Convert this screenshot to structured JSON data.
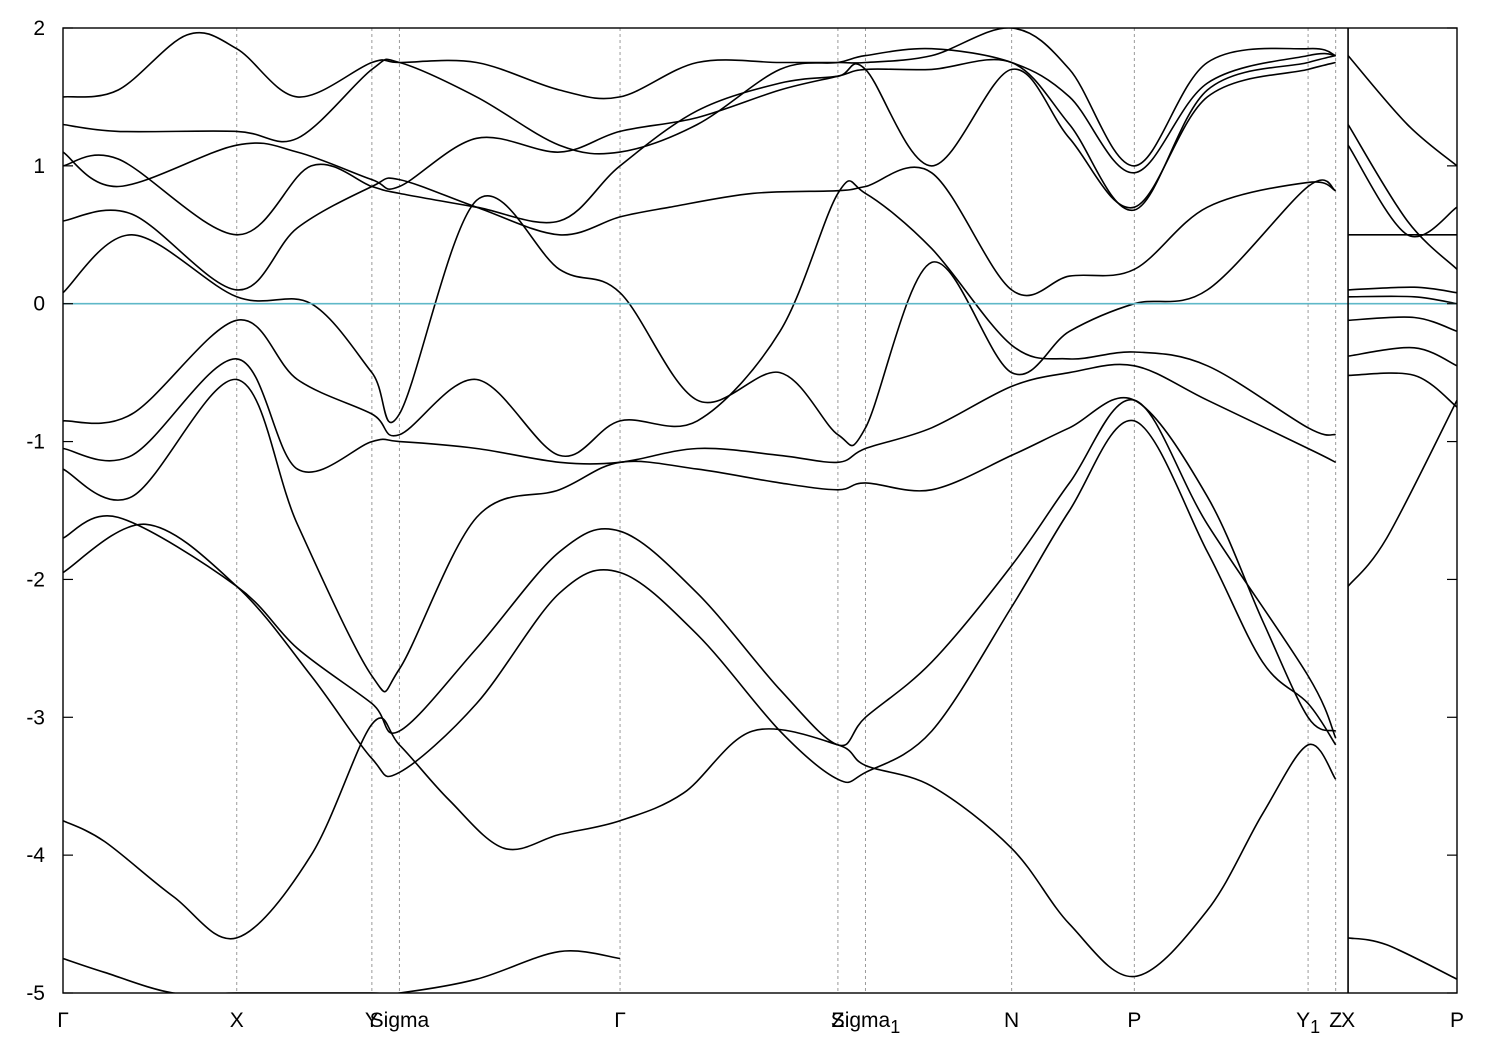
{
  "chart_data": {
    "type": "line",
    "title": "",
    "xlabel": "",
    "ylabel": "",
    "ylim": [
      -5,
      2
    ],
    "y_ticks": [
      -5,
      -4,
      -3,
      -2,
      -1,
      0,
      1,
      2
    ],
    "y_tick_labels": [
      "-5",
      "-4",
      "-3",
      "-2",
      "-1",
      "0",
      "1",
      "2"
    ],
    "x_range": [
      0,
      10.11
    ],
    "k_points": [
      {
        "x": 0.0,
        "label": "Γ"
      },
      {
        "x": 1.26,
        "label": "X"
      },
      {
        "x": 2.24,
        "label": "Y"
      },
      {
        "x": 2.44,
        "label": "Sigma"
      },
      {
        "x": 4.04,
        "label": "Γ"
      },
      {
        "x": 5.62,
        "label": "Z"
      },
      {
        "x": 5.82,
        "label": "Sigma",
        "sub": "1"
      },
      {
        "x": 6.88,
        "label": "N"
      },
      {
        "x": 7.77,
        "label": "P"
      },
      {
        "x": 9.03,
        "label": "Y",
        "sub": "1"
      },
      {
        "x": 9.23,
        "label": "Z"
      },
      {
        "x": 9.32,
        "label": "X"
      },
      {
        "x": 10.11,
        "label": "P"
      }
    ],
    "panel_break_x": 9.32,
    "fermi_level": 0,
    "fermi_color": "#5fb8c8",
    "grid": false,
    "legend": "none",
    "series": [
      {
        "x": [
          0,
          0.3,
          0.8,
          1.26,
          1.7,
          2.24,
          2.44,
          3.0,
          3.6,
          4.04
        ],
        "values": [
          -4.75,
          -4.85,
          -5.0,
          -5.0,
          -5.0,
          -5.0,
          -5.0,
          -4.9,
          -4.7,
          -4.75
        ]
      },
      {
        "x": [
          0,
          0.3,
          0.8,
          1.26,
          1.8,
          2.24,
          2.44,
          2.8,
          3.2,
          3.6,
          4.04,
          4.5,
          5.0,
          5.62,
          5.82,
          6.3,
          6.88,
          7.3,
          7.77,
          8.3,
          8.7,
          9.03,
          9.23
        ],
        "values": [
          -3.75,
          -3.9,
          -4.3,
          -4.6,
          -4.0,
          -3.05,
          -3.2,
          -3.6,
          -3.95,
          -3.85,
          -3.75,
          -3.55,
          -3.1,
          -3.2,
          -3.35,
          -3.5,
          -3.95,
          -4.5,
          -4.88,
          -4.4,
          -3.7,
          -3.2,
          -3.45
        ]
      },
      {
        "x": [
          0,
          0.6,
          1.26,
          1.8,
          2.24,
          2.44,
          3.0,
          3.6,
          4.04,
          4.6,
          5.2,
          5.62,
          5.82,
          6.3,
          6.88,
          7.3,
          7.77,
          8.3,
          8.7,
          9.03,
          9.23
        ],
        "values": [
          -1.95,
          -1.6,
          -2.05,
          -2.7,
          -3.3,
          -3.4,
          -2.9,
          -2.1,
          -1.95,
          -2.4,
          -3.1,
          -3.45,
          -3.4,
          -3.1,
          -2.2,
          -1.5,
          -0.85,
          -1.8,
          -2.6,
          -2.9,
          -3.2
        ]
      },
      {
        "x": [
          0,
          0.4,
          1.26,
          1.7,
          2.24,
          2.44,
          3.0,
          3.6,
          4.04,
          4.6,
          5.2,
          5.62,
          5.82,
          6.3,
          6.88,
          7.3,
          7.77,
          8.3,
          9.03,
          9.23
        ],
        "values": [
          -1.7,
          -1.55,
          -2.05,
          -2.5,
          -2.9,
          -3.1,
          -2.5,
          -1.8,
          -1.65,
          -2.1,
          -2.8,
          -3.2,
          -3.0,
          -2.6,
          -1.9,
          -1.3,
          -0.7,
          -1.6,
          -2.7,
          -3.15
        ]
      },
      {
        "x": [
          0,
          0.5,
          1.26,
          1.7,
          2.24,
          2.44,
          3.0,
          3.6,
          4.04,
          4.6,
          5.2,
          5.62,
          5.82,
          6.3,
          6.88,
          7.3,
          7.77,
          8.3,
          8.7,
          9.03,
          9.23
        ],
        "values": [
          -1.2,
          -1.4,
          -0.55,
          -1.6,
          -2.7,
          -2.65,
          -1.55,
          -1.35,
          -1.15,
          -1.2,
          -1.3,
          -1.35,
          -1.3,
          -1.35,
          -1.1,
          -0.9,
          -0.7,
          -1.4,
          -2.3,
          -3.0,
          -3.1
        ]
      },
      {
        "x": [
          0,
          0.5,
          1.26,
          1.7,
          2.24,
          2.44,
          3.0,
          3.6,
          4.04,
          4.6,
          5.2,
          5.62,
          5.82,
          6.3,
          6.88,
          7.3,
          7.77,
          8.3,
          9.03,
          9.23
        ],
        "values": [
          -1.05,
          -1.1,
          -0.4,
          -1.2,
          -1.0,
          -1.0,
          -1.05,
          -1.15,
          -1.15,
          -1.05,
          -1.1,
          -1.15,
          -1.05,
          -0.9,
          -0.6,
          -0.5,
          -0.45,
          -0.7,
          -1.05,
          -1.15
        ]
      },
      {
        "x": [
          0,
          0.5,
          1.26,
          1.7,
          2.24,
          2.44,
          3.0,
          3.6,
          4.04,
          4.6,
          5.2,
          5.62,
          5.82,
          6.3,
          6.88,
          7.3,
          7.77,
          8.3,
          9.03,
          9.23
        ],
        "values": [
          -0.85,
          -0.8,
          -0.12,
          -0.55,
          -0.8,
          -0.95,
          -0.55,
          -1.1,
          -0.85,
          -0.85,
          -0.2,
          0.8,
          0.8,
          0.4,
          -0.3,
          -0.4,
          -0.35,
          -0.45,
          -0.9,
          -0.95
        ]
      },
      {
        "x": [
          0,
          0.5,
          1.26,
          1.8,
          2.24,
          2.44,
          3.0,
          3.6,
          4.04,
          4.6,
          5.2,
          5.62,
          5.82,
          6.3,
          6.88,
          7.3,
          7.77,
          8.3,
          9.03,
          9.23
        ],
        "values": [
          0.08,
          0.5,
          0.05,
          0.0,
          -0.5,
          -0.8,
          0.75,
          0.25,
          0.08,
          -0.7,
          -0.5,
          -0.95,
          -0.9,
          0.3,
          -0.5,
          -0.2,
          0.0,
          0.1,
          0.85,
          0.82
        ]
      },
      {
        "x": [
          0,
          0.5,
          1.26,
          1.7,
          2.24,
          2.44,
          3.0,
          3.6,
          4.04,
          4.4,
          5.0,
          5.62,
          5.82,
          6.3,
          6.88,
          7.3,
          7.77,
          8.3,
          9.03,
          9.23
        ],
        "values": [
          0.6,
          0.65,
          0.1,
          0.55,
          0.85,
          0.9,
          0.7,
          0.5,
          0.63,
          0.7,
          0.8,
          0.82,
          0.85,
          0.95,
          0.1,
          0.2,
          0.25,
          0.7,
          0.88,
          0.82
        ]
      },
      {
        "x": [
          0,
          0.4,
          1.26,
          1.8,
          2.24,
          2.44,
          3.0,
          3.6,
          4.04,
          4.6,
          5.2,
          5.62,
          5.82,
          6.3,
          6.88,
          7.3,
          7.77,
          8.3,
          9.03,
          9.23
        ],
        "values": [
          1.0,
          1.05,
          0.5,
          1.0,
          0.85,
          0.8,
          0.7,
          0.6,
          1.0,
          1.4,
          1.6,
          1.65,
          1.7,
          1.0,
          1.7,
          1.2,
          0.7,
          1.5,
          1.7,
          1.75
        ]
      },
      {
        "x": [
          0,
          0.4,
          1.26,
          1.7,
          2.24,
          2.44,
          3.0,
          3.6,
          4.04,
          4.6,
          5.2,
          5.62,
          5.82,
          6.3,
          6.88,
          7.3,
          7.77,
          8.3,
          9.03,
          9.23
        ],
        "values": [
          1.1,
          0.85,
          1.15,
          1.1,
          0.9,
          0.85,
          1.2,
          1.1,
          1.25,
          1.35,
          1.55,
          1.65,
          1.7,
          1.7,
          1.75,
          1.3,
          0.68,
          1.55,
          1.75,
          1.8
        ]
      },
      {
        "x": [
          0,
          0.4,
          1.26,
          1.7,
          2.24,
          2.44,
          3.0,
          3.6,
          4.04,
          4.6,
          5.2,
          5.62,
          5.82,
          6.3,
          6.88,
          7.3,
          7.77,
          8.3,
          9.03,
          9.23
        ],
        "values": [
          1.3,
          1.25,
          1.25,
          1.2,
          1.7,
          1.75,
          1.5,
          1.15,
          1.1,
          1.3,
          1.7,
          1.75,
          1.8,
          1.85,
          1.75,
          1.5,
          0.95,
          1.6,
          1.8,
          1.8
        ]
      },
      {
        "x": [
          0,
          0.4,
          0.9,
          1.26,
          1.7,
          2.24,
          2.44,
          3.0,
          3.6,
          4.04,
          4.6,
          5.2,
          5.62,
          5.82,
          6.3,
          6.88,
          7.3,
          7.77,
          8.3,
          9.03,
          9.23
        ],
        "values": [
          1.5,
          1.55,
          1.95,
          1.85,
          1.5,
          1.75,
          1.75,
          1.75,
          1.55,
          1.5,
          1.75,
          1.75,
          1.75,
          1.75,
          1.8,
          2.0,
          1.7,
          1.0,
          1.75,
          1.85,
          1.8
        ]
      },
      {
        "x": [
          9.32,
          9.6,
          10.11
        ],
        "values": [
          -4.6,
          -4.65,
          -4.9
        ]
      },
      {
        "x": [
          9.32,
          9.6,
          10.11
        ],
        "values": [
          -2.05,
          -1.7,
          -0.7
        ]
      },
      {
        "x": [
          9.32,
          9.8,
          10.11
        ],
        "values": [
          -0.52,
          -0.52,
          -0.75
        ]
      },
      {
        "x": [
          9.32,
          9.8,
          10.11
        ],
        "values": [
          -0.38,
          -0.32,
          -0.45
        ]
      },
      {
        "x": [
          9.32,
          9.8,
          10.11
        ],
        "values": [
          -0.12,
          -0.1,
          -0.2
        ]
      },
      {
        "x": [
          9.32,
          9.8,
          10.11
        ],
        "values": [
          0.05,
          0.05,
          0.0
        ]
      },
      {
        "x": [
          9.32,
          9.8,
          10.11
        ],
        "values": [
          0.1,
          0.12,
          0.08
        ]
      },
      {
        "x": [
          9.32,
          9.8,
          10.11
        ],
        "values": [
          0.5,
          0.5,
          0.5
        ]
      },
      {
        "x": [
          9.32,
          9.75,
          10.11
        ],
        "values": [
          1.15,
          0.5,
          0.7
        ]
      },
      {
        "x": [
          9.32,
          9.75,
          10.11
        ],
        "values": [
          1.3,
          0.6,
          0.25
        ]
      },
      {
        "x": [
          9.32,
          9.75,
          10.11
        ],
        "values": [
          1.8,
          1.3,
          1.0
        ]
      }
    ]
  }
}
